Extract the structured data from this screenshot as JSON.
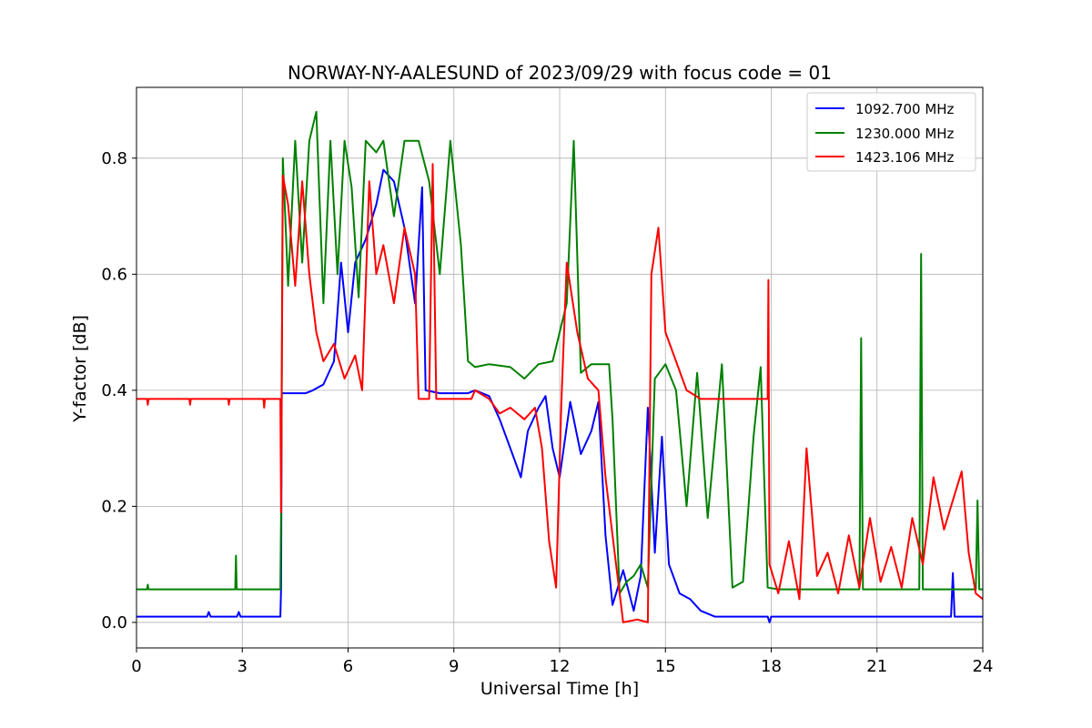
{
  "chart_data": {
    "type": "line",
    "title": "NORWAY-NY-AALESUND of 2023/09/29 with focus code = 01",
    "xlabel": "Universal Time [h]",
    "ylabel": "Y-factor [dB]",
    "xlim": [
      0,
      24
    ],
    "ylim": [
      -0.044,
      0.922
    ],
    "xticks": [
      0,
      3,
      6,
      9,
      12,
      15,
      18,
      21,
      24
    ],
    "xtick_labels": [
      "0",
      "3",
      "6",
      "9",
      "12",
      "15",
      "18",
      "21",
      "24"
    ],
    "yticks": [
      0.0,
      0.2,
      0.4,
      0.6,
      0.8
    ],
    "ytick_labels": [
      "0.0",
      "0.2",
      "0.4",
      "0.6",
      "0.8"
    ],
    "grid": true,
    "legend_position": "top-right",
    "series": [
      {
        "name": "1092.700 MHz",
        "color": "#0000ff",
        "points": [
          [
            0.0,
            0.01
          ],
          [
            2.0,
            0.01
          ],
          [
            2.05,
            0.018
          ],
          [
            2.1,
            0.01
          ],
          [
            2.85,
            0.01
          ],
          [
            2.9,
            0.018
          ],
          [
            2.95,
            0.01
          ],
          [
            4.08,
            0.01
          ],
          [
            4.1,
            0.06
          ],
          [
            4.12,
            0.395
          ],
          [
            4.8,
            0.395
          ],
          [
            5.0,
            0.4
          ],
          [
            5.3,
            0.41
          ],
          [
            5.6,
            0.45
          ],
          [
            5.8,
            0.62
          ],
          [
            6.0,
            0.5
          ],
          [
            6.2,
            0.62
          ],
          [
            6.5,
            0.66
          ],
          [
            6.8,
            0.72
          ],
          [
            7.0,
            0.78
          ],
          [
            7.3,
            0.76
          ],
          [
            7.6,
            0.68
          ],
          [
            7.9,
            0.55
          ],
          [
            8.1,
            0.75
          ],
          [
            8.2,
            0.4
          ],
          [
            8.6,
            0.395
          ],
          [
            9.4,
            0.395
          ],
          [
            9.6,
            0.4
          ],
          [
            10.0,
            0.39
          ],
          [
            10.3,
            0.35
          ],
          [
            10.6,
            0.3
          ],
          [
            10.9,
            0.25
          ],
          [
            11.1,
            0.33
          ],
          [
            11.4,
            0.37
          ],
          [
            11.6,
            0.39
          ],
          [
            11.8,
            0.3
          ],
          [
            12.0,
            0.25
          ],
          [
            12.3,
            0.38
          ],
          [
            12.6,
            0.29
          ],
          [
            12.9,
            0.33
          ],
          [
            13.1,
            0.38
          ],
          [
            13.3,
            0.15
          ],
          [
            13.5,
            0.03
          ],
          [
            13.8,
            0.09
          ],
          [
            14.1,
            0.02
          ],
          [
            14.3,
            0.08
          ],
          [
            14.5,
            0.37
          ],
          [
            14.7,
            0.12
          ],
          [
            14.9,
            0.32
          ],
          [
            15.1,
            0.1
          ],
          [
            15.4,
            0.05
          ],
          [
            15.7,
            0.04
          ],
          [
            16.0,
            0.02
          ],
          [
            16.4,
            0.01
          ],
          [
            17.0,
            0.01
          ],
          [
            17.9,
            0.01
          ],
          [
            17.95,
            0.0
          ],
          [
            18.0,
            0.01
          ],
          [
            20.0,
            0.01
          ],
          [
            23.1,
            0.01
          ],
          [
            23.15,
            0.085
          ],
          [
            23.2,
            0.01
          ],
          [
            24.0,
            0.01
          ]
        ]
      },
      {
        "name": "1230.000 MHz",
        "color": "#008000",
        "points": [
          [
            0.0,
            0.057
          ],
          [
            0.3,
            0.057
          ],
          [
            0.32,
            0.065
          ],
          [
            0.34,
            0.057
          ],
          [
            2.8,
            0.057
          ],
          [
            2.82,
            0.115
          ],
          [
            2.84,
            0.057
          ],
          [
            4.08,
            0.057
          ],
          [
            4.1,
            0.19
          ],
          [
            4.15,
            0.8
          ],
          [
            4.3,
            0.58
          ],
          [
            4.5,
            0.83
          ],
          [
            4.7,
            0.62
          ],
          [
            4.9,
            0.83
          ],
          [
            5.1,
            0.88
          ],
          [
            5.3,
            0.55
          ],
          [
            5.5,
            0.83
          ],
          [
            5.7,
            0.6
          ],
          [
            5.9,
            0.83
          ],
          [
            6.1,
            0.75
          ],
          [
            6.3,
            0.56
          ],
          [
            6.5,
            0.83
          ],
          [
            6.8,
            0.81
          ],
          [
            7.0,
            0.83
          ],
          [
            7.3,
            0.7
          ],
          [
            7.6,
            0.83
          ],
          [
            8.0,
            0.83
          ],
          [
            8.3,
            0.76
          ],
          [
            8.6,
            0.6
          ],
          [
            8.9,
            0.83
          ],
          [
            9.2,
            0.65
          ],
          [
            9.4,
            0.45
          ],
          [
            9.6,
            0.44
          ],
          [
            10.0,
            0.445
          ],
          [
            10.6,
            0.44
          ],
          [
            11.0,
            0.42
          ],
          [
            11.4,
            0.445
          ],
          [
            11.8,
            0.45
          ],
          [
            12.0,
            0.5
          ],
          [
            12.2,
            0.55
          ],
          [
            12.4,
            0.83
          ],
          [
            12.6,
            0.43
          ],
          [
            12.9,
            0.445
          ],
          [
            13.4,
            0.445
          ],
          [
            13.5,
            0.35
          ],
          [
            13.7,
            0.05
          ],
          [
            13.9,
            0.07
          ],
          [
            14.1,
            0.08
          ],
          [
            14.3,
            0.1
          ],
          [
            14.5,
            0.06
          ],
          [
            14.7,
            0.42
          ],
          [
            15.0,
            0.445
          ],
          [
            15.3,
            0.4
          ],
          [
            15.6,
            0.2
          ],
          [
            15.9,
            0.43
          ],
          [
            16.2,
            0.18
          ],
          [
            16.6,
            0.445
          ],
          [
            16.9,
            0.06
          ],
          [
            17.2,
            0.07
          ],
          [
            17.5,
            0.32
          ],
          [
            17.7,
            0.44
          ],
          [
            17.9,
            0.06
          ],
          [
            18.2,
            0.057
          ],
          [
            20.5,
            0.057
          ],
          [
            20.55,
            0.49
          ],
          [
            20.6,
            0.057
          ],
          [
            22.2,
            0.057
          ],
          [
            22.25,
            0.635
          ],
          [
            22.3,
            0.057
          ],
          [
            23.8,
            0.057
          ],
          [
            23.85,
            0.21
          ],
          [
            23.9,
            0.057
          ],
          [
            24.0,
            0.057
          ]
        ]
      },
      {
        "name": "1423.106 MHz",
        "color": "#ff0000",
        "points": [
          [
            0.0,
            0.385
          ],
          [
            0.3,
            0.385
          ],
          [
            0.32,
            0.375
          ],
          [
            0.34,
            0.385
          ],
          [
            1.5,
            0.385
          ],
          [
            1.52,
            0.375
          ],
          [
            1.54,
            0.385
          ],
          [
            2.6,
            0.385
          ],
          [
            2.62,
            0.375
          ],
          [
            2.64,
            0.385
          ],
          [
            3.6,
            0.385
          ],
          [
            3.62,
            0.37
          ],
          [
            3.64,
            0.385
          ],
          [
            4.08,
            0.385
          ],
          [
            4.1,
            0.19
          ],
          [
            4.15,
            0.77
          ],
          [
            4.3,
            0.72
          ],
          [
            4.5,
            0.58
          ],
          [
            4.7,
            0.76
          ],
          [
            4.9,
            0.6
          ],
          [
            5.1,
            0.5
          ],
          [
            5.3,
            0.45
          ],
          [
            5.6,
            0.48
          ],
          [
            5.9,
            0.42
          ],
          [
            6.2,
            0.46
          ],
          [
            6.4,
            0.4
          ],
          [
            6.6,
            0.76
          ],
          [
            6.8,
            0.6
          ],
          [
            7.0,
            0.65
          ],
          [
            7.3,
            0.55
          ],
          [
            7.6,
            0.68
          ],
          [
            7.9,
            0.6
          ],
          [
            8.0,
            0.385
          ],
          [
            8.3,
            0.385
          ],
          [
            8.4,
            0.79
          ],
          [
            8.5,
            0.385
          ],
          [
            9.5,
            0.385
          ],
          [
            9.6,
            0.4
          ],
          [
            10.0,
            0.385
          ],
          [
            10.3,
            0.36
          ],
          [
            10.6,
            0.37
          ],
          [
            11.0,
            0.35
          ],
          [
            11.3,
            0.37
          ],
          [
            11.5,
            0.3
          ],
          [
            11.7,
            0.14
          ],
          [
            11.9,
            0.06
          ],
          [
            12.05,
            0.38
          ],
          [
            12.2,
            0.62
          ],
          [
            12.5,
            0.5
          ],
          [
            12.8,
            0.42
          ],
          [
            13.1,
            0.4
          ],
          [
            13.3,
            0.25
          ],
          [
            13.6,
            0.1
          ],
          [
            13.8,
            0.0
          ],
          [
            14.2,
            0.005
          ],
          [
            14.5,
            0.0
          ],
          [
            14.6,
            0.6
          ],
          [
            14.8,
            0.68
          ],
          [
            15.0,
            0.5
          ],
          [
            15.3,
            0.45
          ],
          [
            15.6,
            0.4
          ],
          [
            16.0,
            0.385
          ],
          [
            17.0,
            0.385
          ],
          [
            17.9,
            0.385
          ],
          [
            17.92,
            0.59
          ],
          [
            17.95,
            0.1
          ],
          [
            18.2,
            0.05
          ],
          [
            18.5,
            0.14
          ],
          [
            18.8,
            0.04
          ],
          [
            19.0,
            0.3
          ],
          [
            19.3,
            0.08
          ],
          [
            19.6,
            0.12
          ],
          [
            19.9,
            0.05
          ],
          [
            20.2,
            0.15
          ],
          [
            20.5,
            0.06
          ],
          [
            20.8,
            0.18
          ],
          [
            21.1,
            0.07
          ],
          [
            21.4,
            0.13
          ],
          [
            21.7,
            0.06
          ],
          [
            22.0,
            0.18
          ],
          [
            22.3,
            0.1
          ],
          [
            22.6,
            0.25
          ],
          [
            22.9,
            0.16
          ],
          [
            23.1,
            0.2
          ],
          [
            23.4,
            0.26
          ],
          [
            23.6,
            0.12
          ],
          [
            23.8,
            0.05
          ],
          [
            24.0,
            0.04
          ]
        ]
      }
    ]
  }
}
